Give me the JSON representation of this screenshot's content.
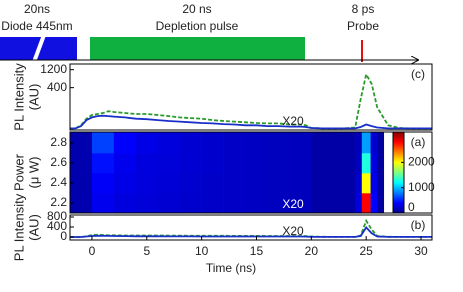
{
  "timing": {
    "diode_duration": "20ns",
    "diode_label": "Diode 445nm",
    "depletion_duration": "20 ns",
    "depletion_label": "Depletion pulse",
    "probe_duration": "8 ps",
    "probe_label": "Probe"
  },
  "chart_data": [
    {
      "type": "line",
      "panel_label": "(c)",
      "annotation": "X20",
      "ylabel_lines": [
        "PL Intensity",
        "(AU)"
      ],
      "log_y": true,
      "xlim": [
        -2,
        31
      ],
      "ylim": [
        30,
        1700
      ],
      "yticks": [
        400,
        1200
      ],
      "x": [
        -2,
        -1.5,
        -1,
        -0.5,
        0,
        0.5,
        1,
        1.5,
        2,
        3,
        4,
        5,
        6,
        7,
        8,
        9,
        10,
        11,
        12,
        13,
        14,
        15,
        16,
        17,
        18,
        19,
        19.5,
        20,
        21,
        22,
        23,
        24,
        24.5,
        25,
        25.5,
        26,
        27,
        28,
        29,
        30,
        31
      ],
      "series": [
        {
          "color": "#2a9a2a",
          "dashed": true,
          "values": [
            33,
            33,
            40,
            60,
            75,
            80,
            85,
            95,
            90,
            85,
            80,
            80,
            75,
            70,
            65,
            62,
            60,
            55,
            52,
            50,
            48,
            46,
            45,
            45,
            42,
            42,
            40,
            34,
            33,
            33,
            33,
            35,
            200,
            900,
            500,
            120,
            40,
            34,
            33,
            33,
            33
          ]
        },
        {
          "color": "#1a2fc8",
          "dashed": false,
          "values": [
            33,
            33,
            38,
            55,
            65,
            70,
            72,
            70,
            68,
            65,
            60,
            58,
            55,
            52,
            50,
            48,
            46,
            45,
            43,
            42,
            40,
            40,
            38,
            38,
            37,
            37,
            36,
            34,
            33,
            33,
            33,
            33,
            36,
            42,
            38,
            35,
            33,
            33,
            33,
            33,
            33
          ]
        }
      ]
    },
    {
      "type": "heatmap",
      "panel_label": "(a)",
      "annotation": "X20",
      "ylabel_lines": [
        "Power",
        "(μ W)"
      ],
      "xlim": [
        -2,
        31
      ],
      "ylim": [
        2.1,
        2.91
      ],
      "yticks": [
        2.2,
        2.4,
        2.6,
        2.8
      ],
      "x_edges": [
        -2,
        0,
        2,
        4,
        6,
        8,
        10,
        12,
        14,
        16,
        18,
        20,
        24,
        24.6,
        25.4,
        26,
        26.6
      ],
      "y_edges": [
        2.1,
        2.3,
        2.5,
        2.7,
        2.91
      ],
      "z": [
        [
          150,
          350,
          300,
          280,
          260,
          240,
          230,
          220,
          210,
          200,
          190,
          120,
          300,
          2800,
          400,
          100
        ],
        [
          150,
          380,
          320,
          290,
          270,
          250,
          230,
          220,
          210,
          200,
          190,
          120,
          250,
          2000,
          350,
          100
        ],
        [
          150,
          450,
          350,
          300,
          280,
          260,
          240,
          220,
          210,
          200,
          190,
          120,
          200,
          1300,
          300,
          100
        ],
        [
          150,
          600,
          400,
          320,
          290,
          260,
          240,
          220,
          210,
          200,
          190,
          120,
          180,
          900,
          250,
          100
        ]
      ],
      "clim": [
        0,
        3200
      ],
      "cticks": [
        0,
        1000,
        2000
      ]
    },
    {
      "type": "line",
      "panel_label": "(b)",
      "annotation": "X20",
      "ylabel_lines": [
        "PL Intensity",
        "(AU)"
      ],
      "xlabel": "Time (ns)",
      "xlim": [
        -2,
        31
      ],
      "xticks": [
        0,
        5,
        10,
        15,
        20,
        25,
        30
      ],
      "ylim": [
        -120,
        880
      ],
      "yticks": [
        0,
        400,
        800
      ],
      "x": [
        -2,
        -1.5,
        -1,
        -0.5,
        0,
        0.5,
        1,
        1.5,
        2,
        3,
        4,
        5,
        6,
        7,
        8,
        9,
        10,
        11,
        12,
        13,
        14,
        15,
        16,
        17,
        18,
        19,
        19.5,
        20,
        21,
        22,
        23,
        24,
        24.5,
        25,
        25.5,
        26,
        27,
        28,
        29,
        30,
        31
      ],
      "series": [
        {
          "color": "#2a9a2a",
          "dashed": true,
          "values": [
            0,
            0,
            0,
            30,
            80,
            90,
            80,
            70,
            70,
            60,
            60,
            60,
            60,
            55,
            55,
            50,
            50,
            50,
            50,
            45,
            45,
            45,
            40,
            40,
            40,
            40,
            35,
            20,
            10,
            5,
            5,
            5,
            60,
            650,
            300,
            40,
            10,
            5,
            5,
            5,
            5
          ]
        },
        {
          "color": "#1a2fc8",
          "dashed": false,
          "values": [
            0,
            0,
            0,
            20,
            40,
            50,
            50,
            45,
            40,
            35,
            30,
            30,
            30,
            25,
            25,
            25,
            20,
            20,
            20,
            20,
            20,
            20,
            20,
            20,
            20,
            20,
            15,
            10,
            5,
            5,
            5,
            5,
            40,
            380,
            150,
            20,
            5,
            5,
            5,
            5,
            5
          ]
        }
      ]
    }
  ]
}
